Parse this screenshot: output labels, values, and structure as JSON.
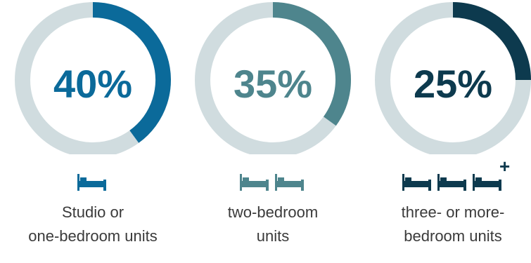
{
  "chart_data": {
    "type": "pie",
    "series": [
      {
        "value_label": "40%",
        "value": 40,
        "label_lines": [
          "Studio or",
          "one-bedroom units"
        ],
        "color": "#0b6a9a",
        "bed_icons": 1,
        "plus": false
      },
      {
        "value_label": "35%",
        "value": 35,
        "label_lines": [
          "two-bedroom",
          "units"
        ],
        "color": "#4e858d",
        "bed_icons": 2,
        "plus": false
      },
      {
        "value_label": "25%",
        "value": 25,
        "label_lines": [
          "three- or more-",
          "bedroom units"
        ],
        "color": "#0d3a4e",
        "bed_icons": 3,
        "plus": true
      }
    ],
    "track_color": "#d0dcdf",
    "plus_text": "+"
  }
}
